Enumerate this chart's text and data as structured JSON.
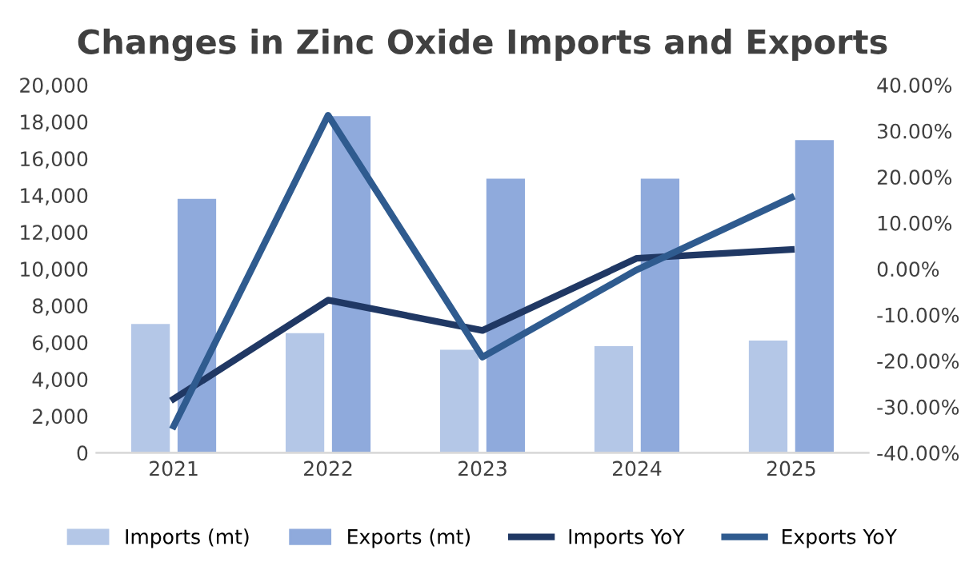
{
  "chart_data": {
    "type": "bar",
    "title": "Changes in Zinc Oxide Imports and Exports",
    "categories": [
      "2021",
      "2022",
      "2023",
      "2024",
      "2025"
    ],
    "series": [
      {
        "name": "Imports (mt)",
        "color": "#b4c7e7",
        "values": [
          7000,
          6500,
          5600,
          5800,
          6100
        ]
      },
      {
        "name": "Exports (mt)",
        "color": "#8faadc",
        "values": [
          13800,
          18300,
          14900,
          14900,
          17000
        ]
      },
      {
        "name": "Imports YoY",
        "type": "line",
        "axis": "y2",
        "color": "#203864",
        "values": [
          -28.3,
          -6.8,
          -13.4,
          2.3,
          4.2
        ]
      },
      {
        "name": "Exports YoY",
        "type": "line",
        "axis": "y2",
        "color": "#2f5b8f",
        "values": [
          -34.2,
          33.4,
          -19.2,
          -0.2,
          15.5
        ]
      }
    ],
    "ylim": [
      0,
      20000
    ],
    "yticks": [
      0,
      {
        "value": 2000,
        "label": "2,000"
      },
      {
        "value": 4000,
        "label": "4,000"
      },
      {
        "value": 6000,
        "label": "6,000"
      },
      {
        "value": 8000,
        "label": "8,000"
      },
      {
        "value": 10000,
        "label": "10,000"
      },
      {
        "value": 12000,
        "label": "12,000"
      },
      {
        "value": 14000,
        "label": "14,000"
      },
      {
        "value": 16000,
        "label": "16,000"
      },
      {
        "value": 18000,
        "label": "18,000"
      },
      {
        "value": 20000,
        "label": "20,000"
      }
    ],
    "y2lim": [
      -40,
      40
    ],
    "y2ticks": [
      {
        "value": -40,
        "label": "-40.00%"
      },
      {
        "value": -30,
        "label": "-30.00%"
      },
      {
        "value": -20,
        "label": "-20.00%"
      },
      {
        "value": -10,
        "label": "-10.00%"
      },
      {
        "value": 0,
        "label": "0.00%"
      },
      {
        "value": 10,
        "label": "10.00%"
      },
      {
        "value": 20,
        "label": "20.00%"
      },
      {
        "value": 30,
        "label": "30.00%"
      },
      {
        "value": 40,
        "label": "40.00%"
      }
    ],
    "legend": "bottom",
    "grid": false,
    "marker": "none",
    "line_style": "solid"
  }
}
